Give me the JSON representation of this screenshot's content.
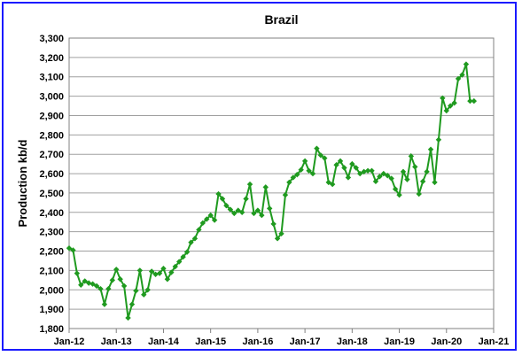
{
  "chart_data": {
    "type": "line",
    "title": "Brazil",
    "xlabel": "",
    "ylabel": "Production kb/d",
    "ylim": [
      1800,
      3300
    ],
    "yticks": [
      1800,
      1900,
      2000,
      2100,
      2200,
      2300,
      2400,
      2500,
      2600,
      2700,
      2800,
      2900,
      3000,
      3100,
      3200,
      3300
    ],
    "ytick_labels": [
      "1,800",
      "1,900",
      "2,000",
      "2,100",
      "2,200",
      "2,300",
      "2,400",
      "2,500",
      "2,600",
      "2,700",
      "2,800",
      "2,900",
      "3,000",
      "3,100",
      "3,200",
      "3,300"
    ],
    "xticks": [
      "Jan-12",
      "Jan-13",
      "Jan-14",
      "Jan-15",
      "Jan-16",
      "Jan-17",
      "Jan-18",
      "Jan-19",
      "Jan-20",
      "Jan-21"
    ],
    "grid": true,
    "legend": "none",
    "color": "#1f9a1f",
    "series": [
      {
        "x_start": "Jan-12",
        "frequency": "monthly",
        "values": [
          2215,
          2205,
          2085,
          2025,
          2045,
          2035,
          2030,
          2020,
          2005,
          1925,
          2005,
          2050,
          2105,
          2055,
          2020,
          1855,
          1925,
          1995,
          2100,
          1975,
          2000,
          2095,
          2080,
          2085,
          2110,
          2055,
          2090,
          2120,
          2145,
          2170,
          2195,
          2245,
          2265,
          2310,
          2345,
          2365,
          2385,
          2360,
          2495,
          2470,
          2435,
          2415,
          2395,
          2410,
          2400,
          2470,
          2545,
          2395,
          2410,
          2385,
          2530,
          2420,
          2340,
          2265,
          2290,
          2490,
          2555,
          2580,
          2595,
          2620,
          2665,
          2615,
          2600,
          2730,
          2695,
          2680,
          2555,
          2545,
          2645,
          2665,
          2630,
          2580,
          2650,
          2630,
          2600,
          2610,
          2615,
          2615,
          2560,
          2585,
          2600,
          2590,
          2575,
          2520,
          2490,
          2610,
          2570,
          2690,
          2635,
          2495,
          2560,
          2610,
          2725,
          2555,
          2775,
          2990,
          2925,
          2950,
          2965,
          3090,
          3110,
          3165,
          2975,
          2975
        ]
      }
    ]
  }
}
